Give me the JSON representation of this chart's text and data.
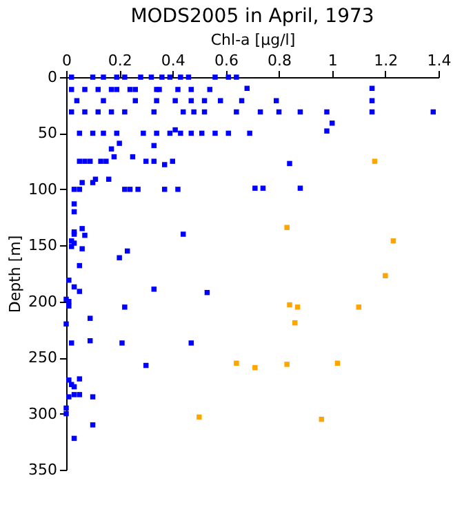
{
  "chart_data": {
    "type": "scatter",
    "title": "MODS2005 in April, 1973",
    "xlabel": "Chl-a [µg/l]",
    "ylabel": "Depth [m]",
    "marker": "square",
    "grid": false,
    "legend": false,
    "xlim": [
      0,
      1.4
    ],
    "xticks": [
      0,
      0.2,
      0.4,
      0.6,
      0.8,
      1,
      1.2,
      1.4
    ],
    "ylim": [
      350,
      0
    ],
    "yticks": [
      0,
      50,
      100,
      150,
      200,
      250,
      300,
      350
    ],
    "series": [
      {
        "color": "#0000ff",
        "x": [
          0.02,
          0.1,
          0.14,
          0.19,
          0.22,
          0.28,
          0.32,
          0.36,
          0.39,
          0.43,
          0.46,
          0.56,
          0.61,
          0.64,
          0.02,
          0.07,
          0.12,
          0.17,
          0.19,
          0.24,
          0.26,
          0.34,
          0.35,
          0.42,
          0.47,
          0.54,
          0.68,
          1.15,
          0.04,
          0.14,
          0.26,
          0.34,
          0.41,
          0.47,
          0.52,
          0.58,
          0.66,
          0.79,
          1.15,
          0.02,
          0.07,
          0.12,
          0.17,
          0.22,
          0.33,
          0.44,
          0.48,
          0.52,
          0.64,
          0.73,
          0.8,
          0.88,
          0.98,
          1.15,
          1.38,
          1.0,
          0.98,
          0.05,
          0.1,
          0.14,
          0.19,
          0.29,
          0.34,
          0.39,
          0.43,
          0.47,
          0.51,
          0.56,
          0.61,
          0.69,
          0.41,
          0.2,
          0.17,
          0.33,
          0.05,
          0.07,
          0.09,
          0.13,
          0.15,
          0.3,
          0.33,
          0.4,
          0.18,
          0.25,
          0.37,
          0.84,
          0.11,
          0.16,
          0.06,
          0.1,
          0.03,
          0.05,
          0.22,
          0.24,
          0.27,
          0.37,
          0.42,
          0.71,
          0.74,
          0.88,
          0.03,
          0.03,
          0.06,
          0.03,
          0.03,
          0.07,
          0.44,
          0.02,
          0.03,
          0.02,
          0.06,
          0.23,
          0.2,
          0.05,
          0.01,
          0.03,
          0.33,
          0.05,
          0.53,
          0.0,
          0.01,
          0.01,
          0.22,
          0.09,
          0.0,
          0.09,
          0.02,
          0.21,
          0.47,
          0.3,
          0.01,
          0.05,
          0.02,
          0.03,
          0.03,
          0.05,
          0.01,
          0.1,
          0.0,
          0.0,
          0.1,
          0.03
        ],
        "values": [
          0,
          0,
          0,
          0,
          0,
          0,
          0,
          0,
          0,
          0,
          0,
          0,
          0,
          0,
          11,
          11,
          11,
          11,
          11,
          11,
          11,
          11,
          11,
          11,
          11,
          11,
          10,
          10,
          21,
          21,
          21,
          21,
          21,
          21,
          21,
          21,
          21,
          21,
          21,
          31,
          31,
          31,
          31,
          31,
          31,
          31,
          31,
          31,
          31,
          31,
          31,
          31,
          31,
          31,
          31,
          41,
          48,
          50,
          50,
          50,
          50,
          50,
          50,
          50,
          50,
          50,
          50,
          50,
          50,
          50,
          47,
          59,
          64,
          61,
          75,
          75,
          75,
          75,
          75,
          75,
          75,
          75,
          71,
          71,
          78,
          77,
          91,
          91,
          94,
          94,
          100,
          100,
          100,
          100,
          100,
          100,
          100,
          99,
          99,
          99,
          113,
          120,
          135,
          138,
          140,
          141,
          140,
          146,
          148,
          151,
          153,
          155,
          161,
          168,
          181,
          187,
          189,
          191,
          192,
          198,
          200,
          204,
          205,
          215,
          220,
          235,
          237,
          237,
          237,
          257,
          270,
          269,
          274,
          276,
          283,
          283,
          285,
          285,
          295,
          300,
          310,
          322
        ]
      },
      {
        "color": "#ffa500",
        "x": [
          1.16,
          0.83,
          1.23,
          1.2,
          0.84,
          0.87,
          1.1,
          0.86,
          0.64,
          0.71,
          0.83,
          1.02,
          0.5,
          0.96
        ],
        "values": [
          75,
          134,
          146,
          177,
          203,
          205,
          205,
          219,
          255,
          259,
          256,
          255,
          303,
          305
        ]
      }
    ]
  }
}
